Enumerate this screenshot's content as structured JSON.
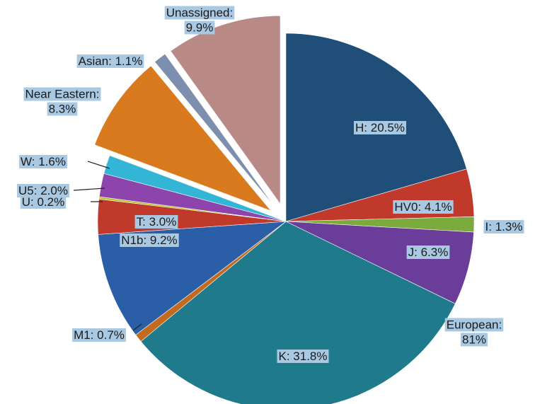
{
  "chart_data": {
    "type": "pie",
    "slices": [
      {
        "name": "H",
        "label": "H: 20.5%",
        "value": 20.5,
        "color": "#1f4e79",
        "group": "European"
      },
      {
        "name": "HV0",
        "label": "HV0: 4.1%",
        "value": 4.1,
        "color": "#c0392b",
        "group": "European"
      },
      {
        "name": "I",
        "label": "I: 1.3%",
        "value": 1.3,
        "color": "#7aab3c",
        "group": "European"
      },
      {
        "name": "J",
        "label": "J: 6.3%",
        "value": 6.3,
        "color": "#6a3d9a",
        "group": "European"
      },
      {
        "name": "K",
        "label": "K: 31.8%",
        "value": 31.8,
        "color": "#1f7a8c",
        "group": "European"
      },
      {
        "name": "M1",
        "label": "M1: 0.7%",
        "value": 0.7,
        "color": "#c46a1f",
        "group": "European"
      },
      {
        "name": "N1b",
        "label": "N1b: 9.2%",
        "value": 9.2,
        "color": "#2a5fa8",
        "group": "European"
      },
      {
        "name": "T",
        "label": "T: 3.0%",
        "value": 3.0,
        "color": "#c0392b",
        "group": "European"
      },
      {
        "name": "U",
        "label": "U: 0.2%",
        "value": 0.2,
        "color": "#b7c42f",
        "group": "European"
      },
      {
        "name": "U5",
        "label": "U5: 2.0%",
        "value": 2.0,
        "color": "#8e44ad",
        "group": "European"
      },
      {
        "name": "W",
        "label": "W: 1.6%",
        "value": 1.6,
        "color": "#33b5d6",
        "group": "European"
      },
      {
        "name": "Near Eastern",
        "label": "Near Eastern: 8.3%",
        "value": 8.3,
        "color": "#d97a1e",
        "group": "Near Eastern"
      },
      {
        "name": "Asian",
        "label": "Asian: 1.1%",
        "value": 1.1,
        "color": "#7d8fae",
        "group": "Asian"
      },
      {
        "name": "Unassigned",
        "label": "Unassigned: 9.9%",
        "value": 9.9,
        "color": "#b98a85",
        "group": "Unassigned"
      }
    ],
    "group_labels": [
      {
        "group": "European",
        "label": "European: 81%",
        "value": 81
      }
    ],
    "exploded": [
      "Near Eastern",
      "Asian",
      "Unassigned"
    ],
    "start_angle": "12 o'clock",
    "direction": "clockwise",
    "legend": "none"
  }
}
